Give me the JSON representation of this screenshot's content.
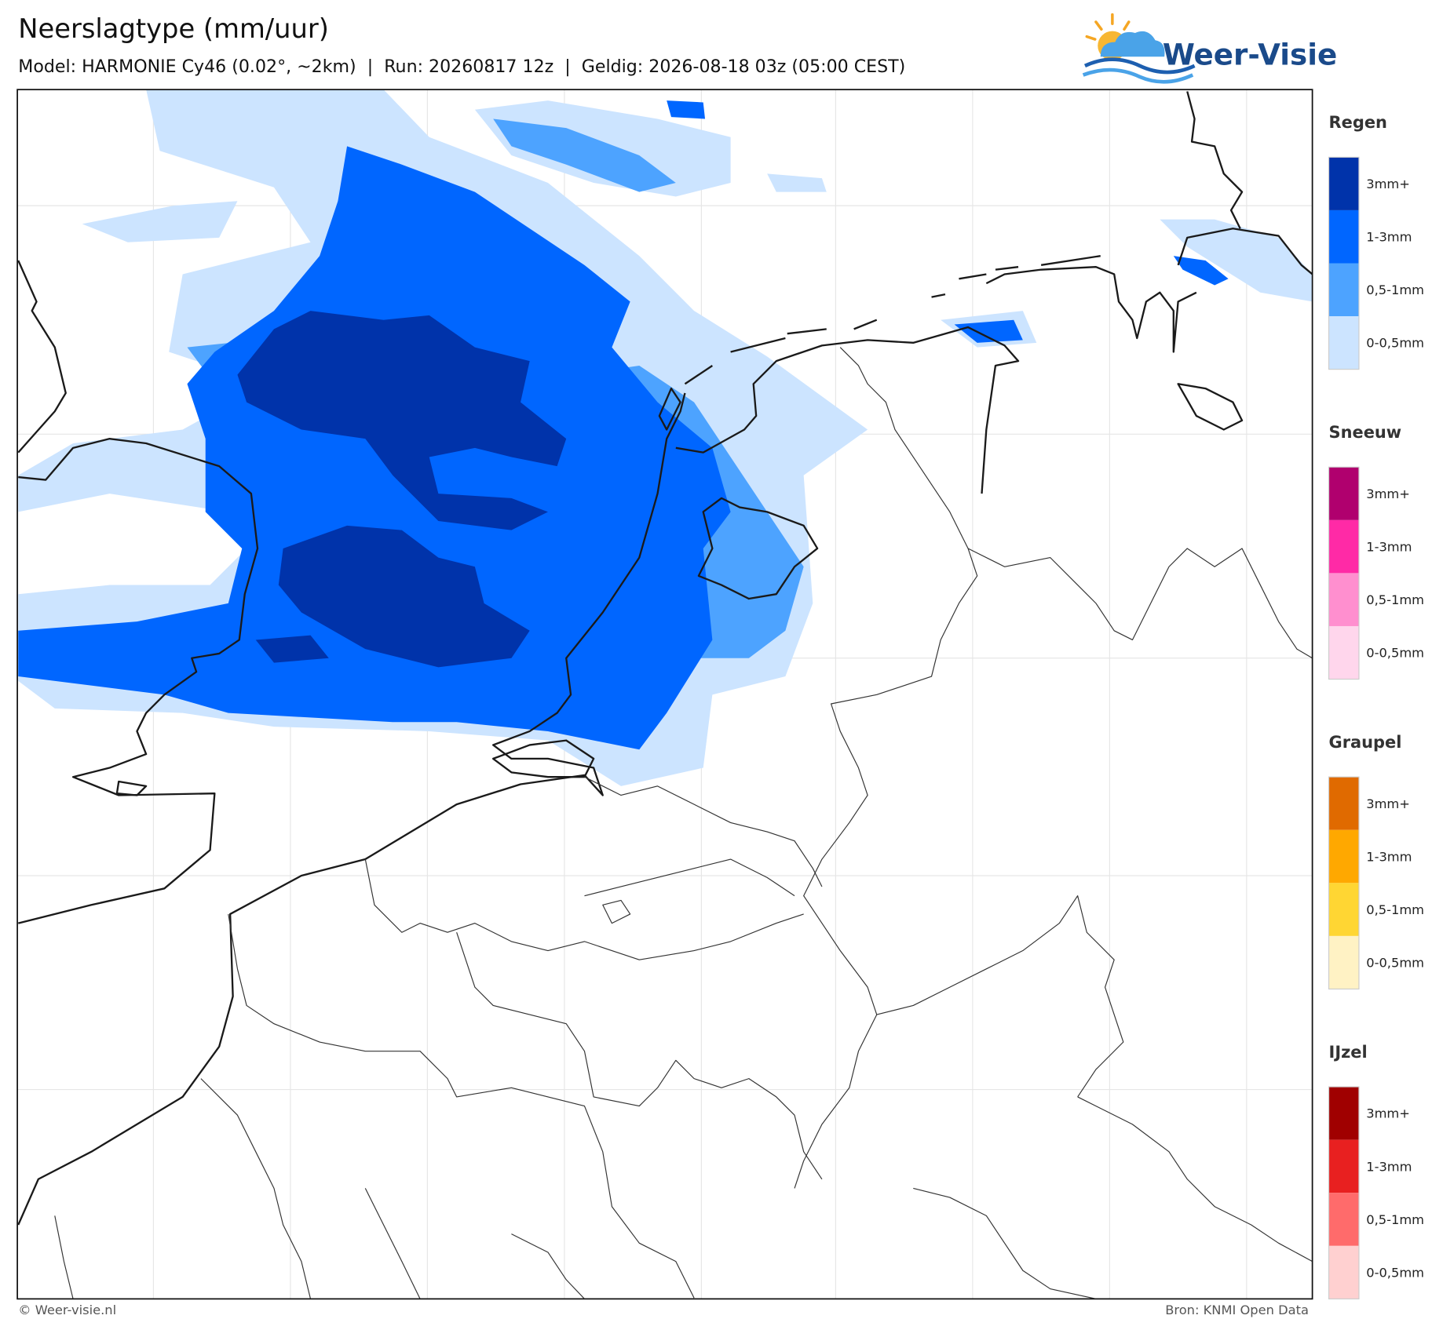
{
  "header": {
    "title": "Neerslagtype (mm/uur)",
    "subtitle": "Model: HARMONIE Cy46 (0.02°, ~2km)  |  Run: 20260817 12z  |  Geldig: 2026-08-18 03z (05:00 CEST)",
    "logo": "Weer-Visie"
  },
  "legend": [
    {
      "title": "Regen",
      "items": [
        {
          "label": "3mm+",
          "color": "#0033aa"
        },
        {
          "label": "1-3mm",
          "color": "#0066ff"
        },
        {
          "label": "0,5-1mm",
          "color": "#4da3ff"
        },
        {
          "label": "0-0,5mm",
          "color": "#cce4ff"
        }
      ]
    },
    {
      "title": "Sneeuw",
      "items": [
        {
          "label": "3mm+",
          "color": "#b0006e"
        },
        {
          "label": "1-3mm",
          "color": "#ff2aa6"
        },
        {
          "label": "0,5-1mm",
          "color": "#ff8fcf"
        },
        {
          "label": "0-0,5mm",
          "color": "#ffd6ec"
        }
      ]
    },
    {
      "title": "Graupel",
      "items": [
        {
          "label": "3mm+",
          "color": "#e06a00"
        },
        {
          "label": "1-3mm",
          "color": "#ffa800"
        },
        {
          "label": "0,5-1mm",
          "color": "#ffd633"
        },
        {
          "label": "0-0,5mm",
          "color": "#fff2c4"
        }
      ]
    },
    {
      "title": "IJzel",
      "items": [
        {
          "label": "3mm+",
          "color": "#a00000"
        },
        {
          "label": "1-3mm",
          "color": "#e82020"
        },
        {
          "label": "0,5-1mm",
          "color": "#ff6b6b"
        },
        {
          "label": "0-0,5mm",
          "color": "#ffd0d0"
        }
      ]
    }
  ],
  "footer": {
    "left": "© Weer-visie.nl",
    "right": "Bron: KNMI Open Data"
  }
}
